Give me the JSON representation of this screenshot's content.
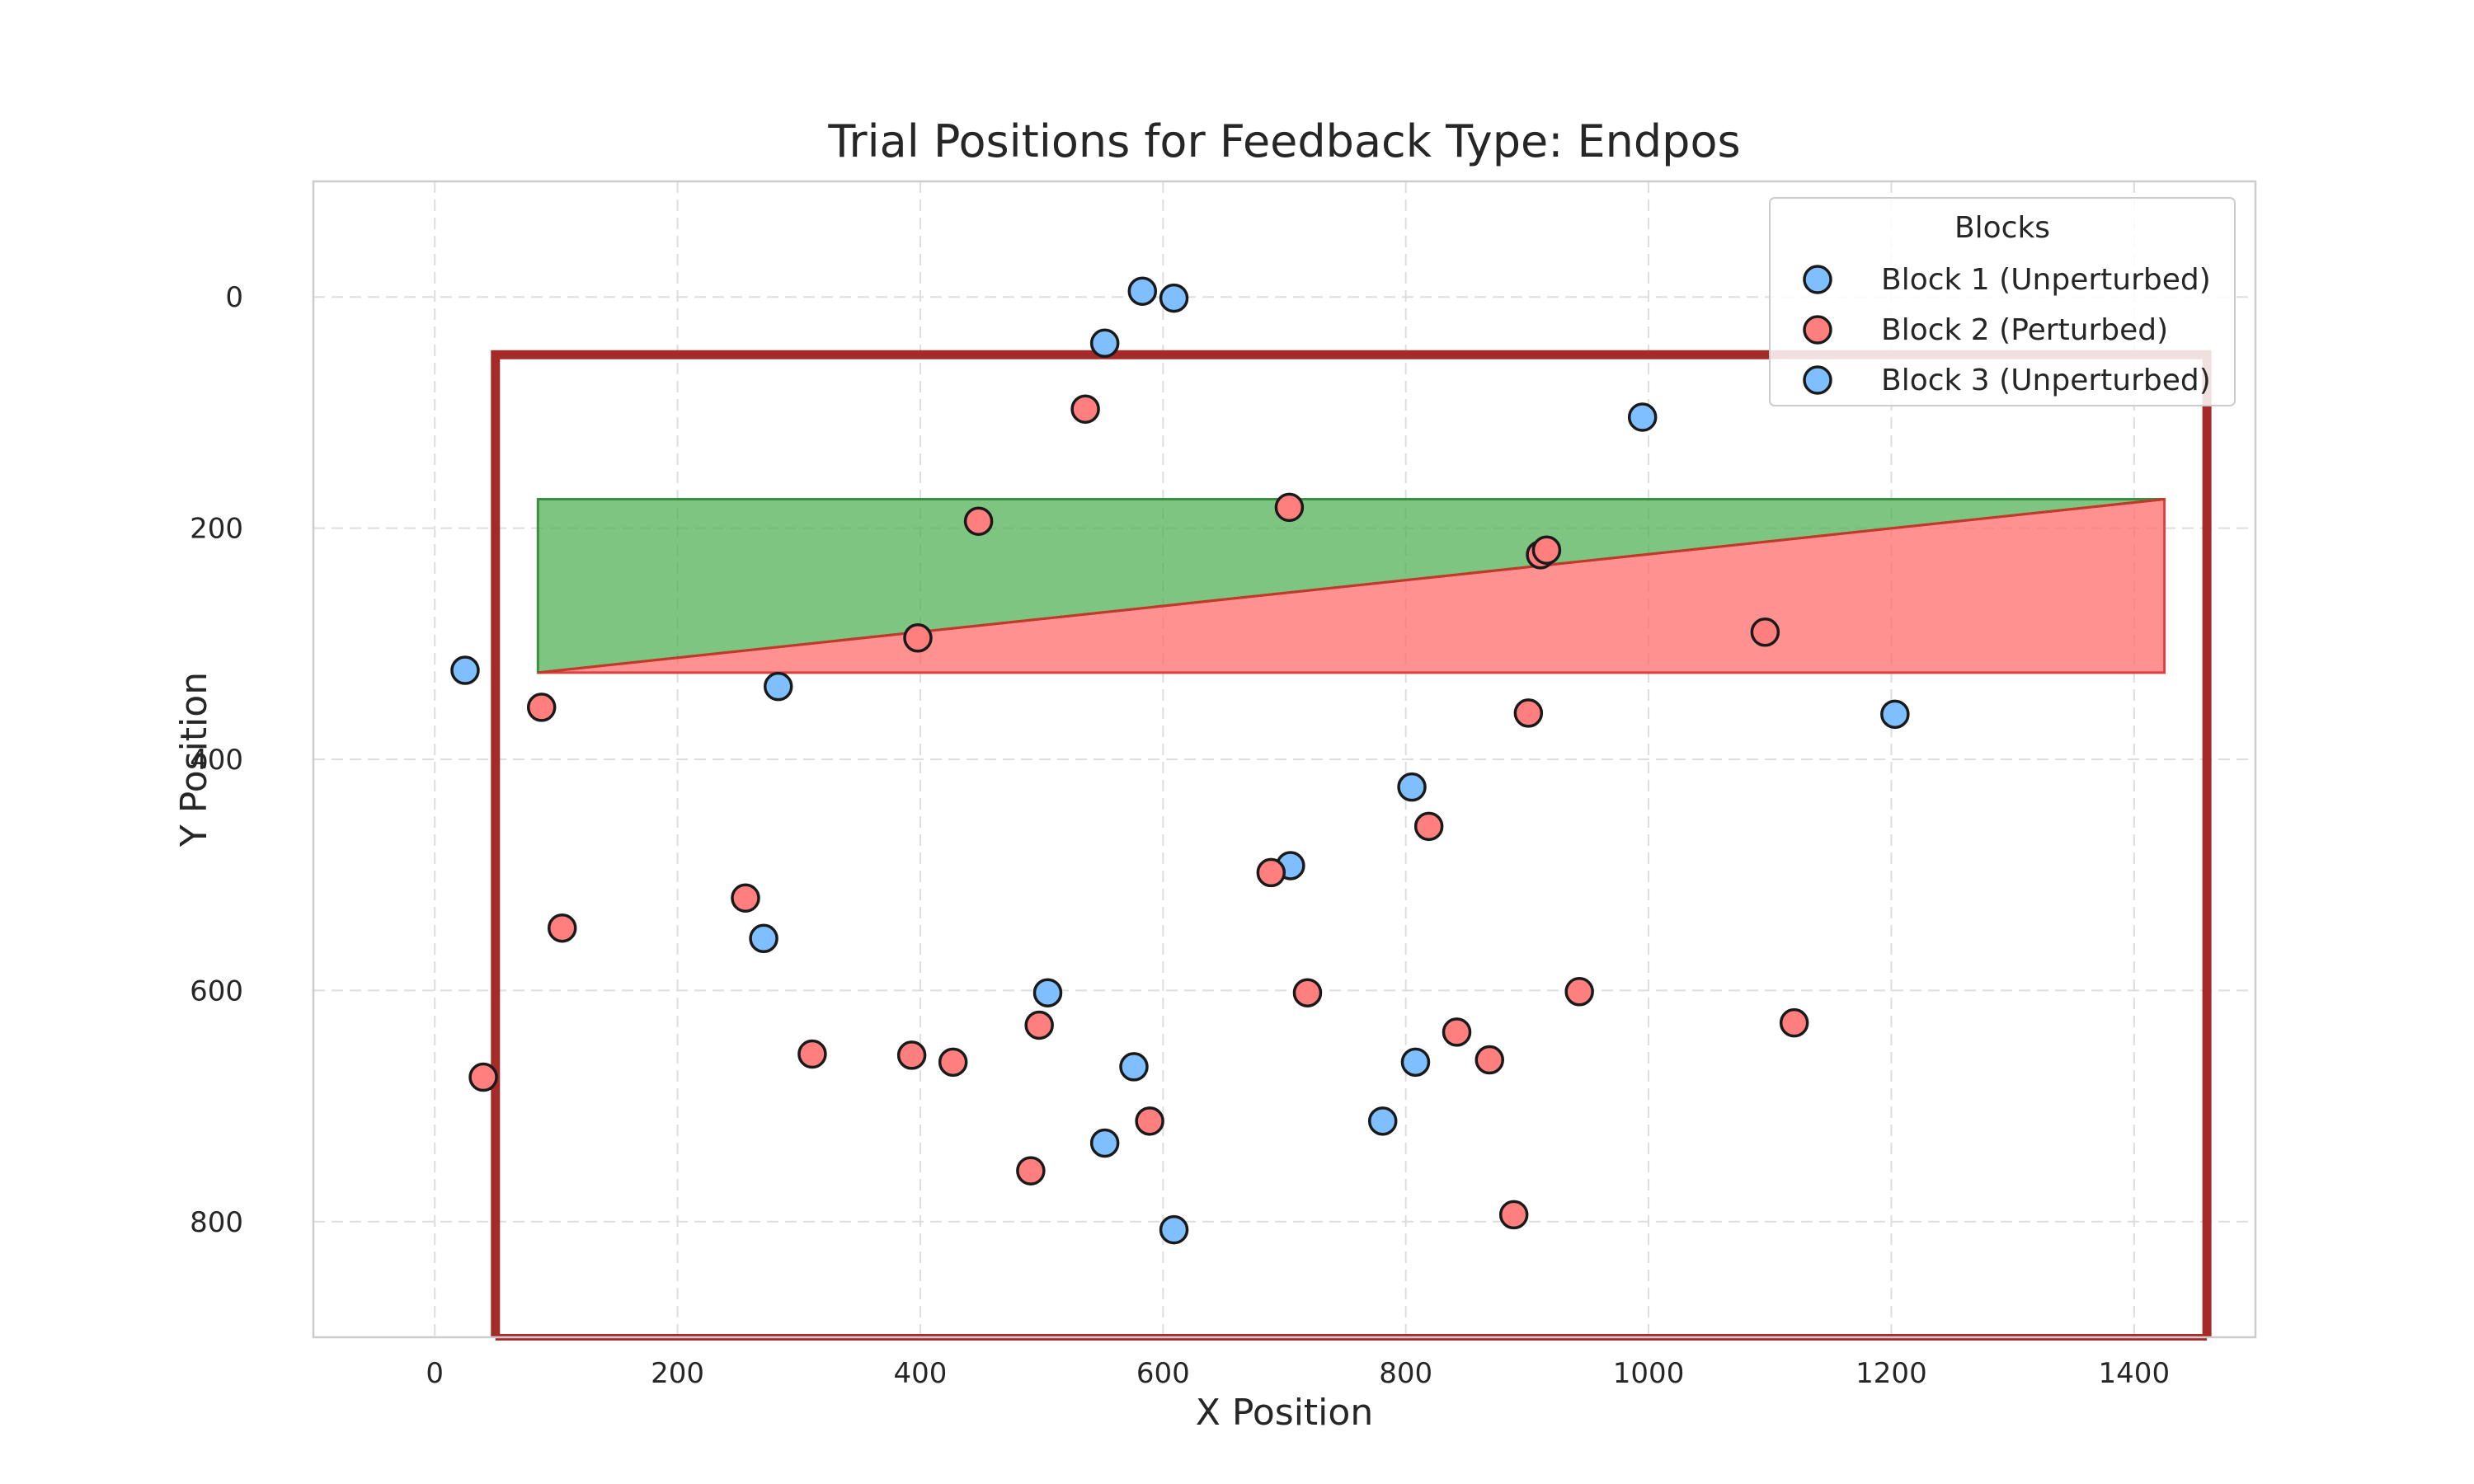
{
  "chart_data": {
    "type": "scatter",
    "title": "Trial Positions for Feedback Type: Endpos",
    "xlabel": "X Position",
    "ylabel": "Y Position",
    "xlim": [
      -100,
      1500
    ],
    "ylim": [
      900,
      -100
    ],
    "y_inverted": true,
    "xticks": [
      0,
      200,
      400,
      600,
      800,
      1000,
      1200,
      1400
    ],
    "yticks": [
      0,
      200,
      400,
      600,
      800
    ],
    "grid": true,
    "legend": {
      "title": "Blocks",
      "placement": "top-right"
    },
    "colors": {
      "block1": "#7fbfff",
      "block2": "#ff7f7f",
      "block3": "#7fbfff",
      "border": "#a52a2a",
      "green_region": "#4caf50",
      "red_region": "#ff6666"
    },
    "boundary_rect": {
      "x": [
        50,
        1460
      ],
      "y": [
        50,
        900
      ]
    },
    "regions": [
      {
        "name": "green",
        "polygon": [
          [
            85,
            175
          ],
          [
            1425,
            175
          ],
          [
            85,
            325
          ]
        ]
      },
      {
        "name": "red",
        "polygon": [
          [
            85,
            325
          ],
          [
            1425,
            175
          ],
          [
            1425,
            325
          ]
        ]
      }
    ],
    "series": [
      {
        "name": "Block 1 (Unperturbed)",
        "points": [
          [
            583,
            -5
          ],
          [
            609,
            1
          ],
          [
            552,
            40
          ],
          [
            995,
            104
          ],
          [
            25,
            323
          ],
          [
            283,
            337
          ],
          [
            1203,
            361
          ],
          [
            805,
            424
          ],
          [
            705,
            492
          ],
          [
            271,
            555
          ],
          [
            505,
            602
          ],
          [
            576,
            666
          ],
          [
            808,
            662
          ],
          [
            781,
            713
          ],
          [
            552,
            732
          ],
          [
            609,
            807
          ]
        ]
      },
      {
        "name": "Block 2 (Perturbed)",
        "points": [
          [
            536,
            97
          ],
          [
            448,
            194
          ],
          [
            704,
            182
          ],
          [
            911,
            223
          ],
          [
            916,
            219
          ],
          [
            398,
            295
          ],
          [
            1096,
            290
          ],
          [
            88,
            355
          ],
          [
            901,
            360
          ],
          [
            819,
            458
          ],
          [
            689,
            498
          ],
          [
            256,
            520
          ],
          [
            105,
            546
          ],
          [
            719,
            602
          ],
          [
            943,
            601
          ],
          [
            498,
            630
          ],
          [
            1120,
            628
          ],
          [
            311,
            655
          ],
          [
            393,
            656
          ],
          [
            427,
            662
          ],
          [
            842,
            636
          ],
          [
            869,
            660
          ],
          [
            40,
            675
          ],
          [
            589,
            713
          ],
          [
            491,
            756
          ],
          [
            889,
            794
          ]
        ]
      },
      {
        "name": "Block 3 (Unperturbed)",
        "points": []
      }
    ]
  }
}
